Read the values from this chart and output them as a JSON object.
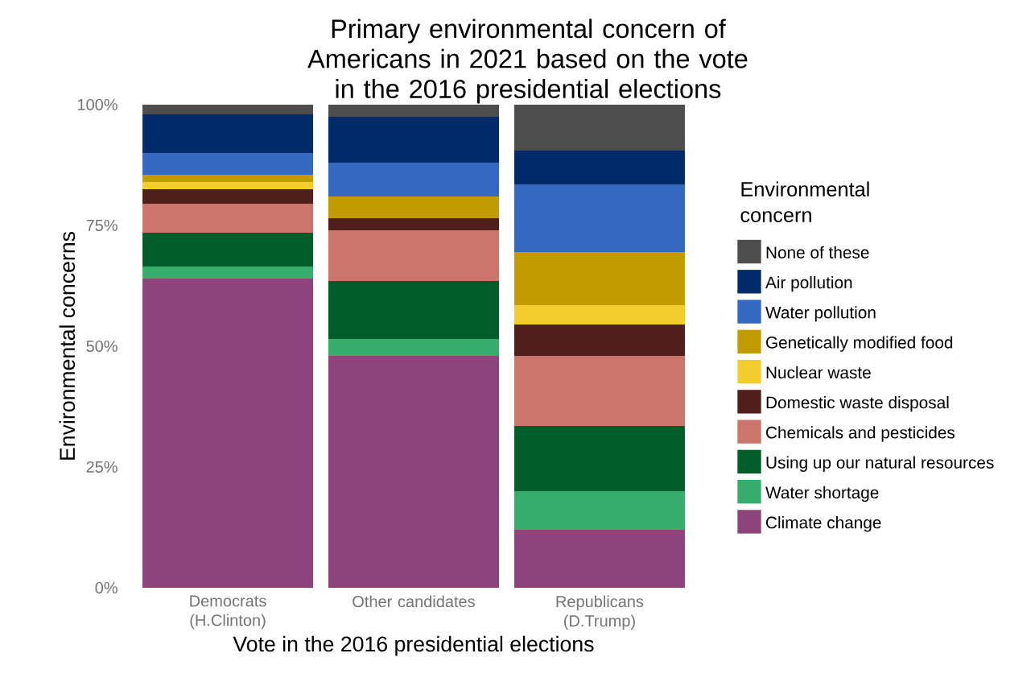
{
  "chart_data": {
    "type": "bar",
    "stacked": true,
    "title": "Primary environmental concern of Americans in 2021 based on the vote in the 2016 presidential elections",
    "xlabel": "Vote in the 2016 presidential elections",
    "ylabel": "Environmental concerns",
    "legend_title": "Environmental concern",
    "categories": [
      "Democrats (H.Clinton)",
      "Other candidates",
      "Republicans (D.Trump)"
    ],
    "ylim": [
      0,
      100
    ],
    "yticks": [
      {
        "value": 0,
        "label": "0%"
      },
      {
        "value": 25,
        "label": "25%"
      },
      {
        "value": 50,
        "label": "50%"
      },
      {
        "value": 75,
        "label": "75%"
      },
      {
        "value": 100,
        "label": "100%"
      }
    ],
    "grid": false,
    "legend": "right",
    "series": [
      {
        "name": "Climate change",
        "color": "#8c447b",
        "values": [
          64,
          48,
          12
        ]
      },
      {
        "name": "Water shortage",
        "color": "#35ad6b",
        "values": [
          2.5,
          3.5,
          8
        ]
      },
      {
        "name": "Using up our natural resources",
        "color": "#005c28",
        "values": [
          7,
          12,
          13.5
        ]
      },
      {
        "name": "Chemicals and pesticides",
        "color": "#cc756a",
        "values": [
          6,
          10.5,
          14.5
        ]
      },
      {
        "name": "Domestic waste disposal",
        "color": "#4f1f1b",
        "values": [
          3,
          2.5,
          6.5
        ]
      },
      {
        "name": "Nuclear waste",
        "color": "#f3cc30",
        "values": [
          1.5,
          0,
          4
        ]
      },
      {
        "name": "Genetically modified food",
        "color": "#c29b00",
        "values": [
          1.5,
          4.5,
          11
        ]
      },
      {
        "name": "Water pollution",
        "color": "#3369c0",
        "values": [
          4.5,
          7,
          14
        ]
      },
      {
        "name": "Air pollution",
        "color": "#002b69",
        "values": [
          8,
          9.5,
          7
        ]
      },
      {
        "name": "None of these",
        "color": "#4d4d4d",
        "values": [
          2,
          2.5,
          9.5
        ]
      }
    ]
  }
}
